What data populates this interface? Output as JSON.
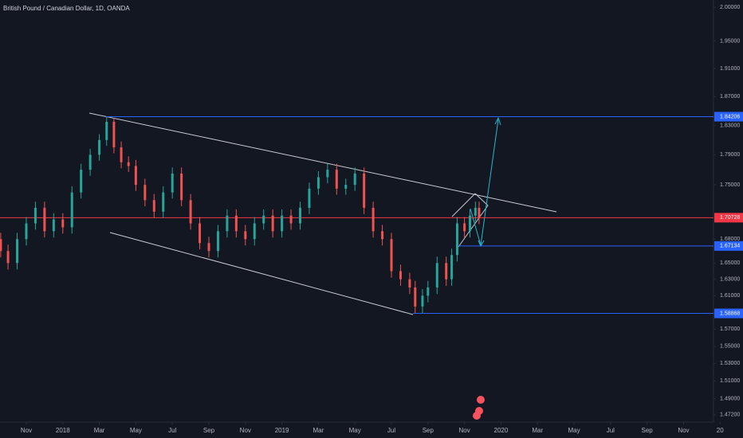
{
  "chart_data": {
    "type": "candlestick",
    "title": "British Pound / Canadian Dollar, 1D, OANDA",
    "log_scale": true,
    "grid": false,
    "up_color": "#26a69a",
    "down_color": "#ef5350",
    "x": [
      -1.4,
      -1.0,
      -0.5,
      0,
      0.5,
      1.0,
      1.5,
      2.0,
      2.5,
      3.0,
      3.5,
      4.0,
      4.4,
      4.8,
      5.2,
      5.6,
      6.0,
      6.5,
      7.0,
      7.5,
      8.0,
      8.5,
      9.0,
      9.5,
      10.0,
      10.5,
      11.0,
      11.5,
      12.0,
      12.5,
      13.0,
      13.5,
      14.0,
      14.5,
      15.0,
      15.5,
      16.0,
      16.5,
      17.0,
      17.5,
      18.0,
      18.5,
      19.0,
      19.5,
      20.0,
      20.5,
      21.0,
      21.3,
      21.7,
      22.0,
      22.5,
      23.0,
      23.3,
      23.6,
      24.0,
      24.3,
      24.6,
      24.8
    ],
    "open": [
      1.68,
      1.665,
      1.65,
      1.68,
      1.7,
      1.72,
      1.69,
      1.705,
      1.695,
      1.74,
      1.77,
      1.79,
      1.81,
      1.835,
      1.8,
      1.78,
      1.775,
      1.75,
      1.73,
      1.715,
      1.74,
      1.765,
      1.73,
      1.7,
      1.675,
      1.665,
      1.69,
      1.71,
      1.69,
      1.68,
      1.7,
      1.71,
      1.69,
      1.71,
      1.7,
      1.72,
      1.745,
      1.76,
      1.77,
      1.745,
      1.75,
      1.765,
      1.72,
      1.69,
      1.68,
      1.64,
      1.63,
      1.62,
      1.597,
      1.61,
      1.62,
      1.65,
      1.63,
      1.66,
      1.7,
      1.69,
      1.71,
      1.72
    ],
    "high": [
      1.688,
      1.673,
      1.688,
      1.708,
      1.728,
      1.728,
      1.713,
      1.713,
      1.748,
      1.778,
      1.798,
      1.818,
      1.842,
      1.84,
      1.808,
      1.788,
      1.783,
      1.758,
      1.738,
      1.748,
      1.773,
      1.773,
      1.738,
      1.708,
      1.683,
      1.698,
      1.718,
      1.718,
      1.698,
      1.708,
      1.718,
      1.718,
      1.718,
      1.718,
      1.728,
      1.753,
      1.768,
      1.778,
      1.778,
      1.758,
      1.773,
      1.773,
      1.728,
      1.698,
      1.688,
      1.648,
      1.638,
      1.628,
      1.618,
      1.628,
      1.658,
      1.658,
      1.668,
      1.708,
      1.708,
      1.718,
      1.728,
      1.728
    ],
    "low": [
      1.657,
      1.642,
      1.642,
      1.672,
      1.692,
      1.682,
      1.682,
      1.687,
      1.687,
      1.732,
      1.762,
      1.782,
      1.802,
      1.792,
      1.772,
      1.767,
      1.742,
      1.722,
      1.707,
      1.707,
      1.732,
      1.722,
      1.692,
      1.667,
      1.657,
      1.657,
      1.682,
      1.682,
      1.672,
      1.672,
      1.692,
      1.682,
      1.682,
      1.692,
      1.692,
      1.712,
      1.737,
      1.752,
      1.737,
      1.737,
      1.742,
      1.712,
      1.682,
      1.672,
      1.632,
      1.622,
      1.612,
      1.589,
      1.589,
      1.602,
      1.612,
      1.622,
      1.622,
      1.652,
      1.682,
      1.682,
      1.702,
      1.699
    ],
    "close": [
      1.665,
      1.65,
      1.68,
      1.7,
      1.72,
      1.69,
      1.705,
      1.695,
      1.74,
      1.77,
      1.79,
      1.81,
      1.835,
      1.8,
      1.78,
      1.775,
      1.75,
      1.73,
      1.715,
      1.74,
      1.765,
      1.73,
      1.7,
      1.675,
      1.665,
      1.69,
      1.71,
      1.69,
      1.68,
      1.7,
      1.71,
      1.69,
      1.71,
      1.7,
      1.72,
      1.745,
      1.76,
      1.77,
      1.745,
      1.75,
      1.765,
      1.72,
      1.69,
      1.68,
      1.64,
      1.63,
      1.62,
      1.597,
      1.61,
      1.62,
      1.65,
      1.63,
      1.66,
      1.7,
      1.69,
      1.71,
      1.72,
      1.707
    ],
    "xlim": [
      -1.44,
      37.64
    ],
    "xticks": [
      {
        "value": 0,
        "label": "Nov"
      },
      {
        "value": 2,
        "label": "2018"
      },
      {
        "value": 4,
        "label": "Mar"
      },
      {
        "value": 6,
        "label": "May"
      },
      {
        "value": 8,
        "label": "Jul"
      },
      {
        "value": 10,
        "label": "Sep"
      },
      {
        "value": 12,
        "label": "Nov"
      },
      {
        "value": 14,
        "label": "2019"
      },
      {
        "value": 16,
        "label": "Mar"
      },
      {
        "value": 18,
        "label": "May"
      },
      {
        "value": 20,
        "label": "Jul"
      },
      {
        "value": 22,
        "label": "Sep"
      },
      {
        "value": 24,
        "label": "Nov"
      },
      {
        "value": 26,
        "label": "2020"
      },
      {
        "value": 28,
        "label": "Mar"
      },
      {
        "value": 30,
        "label": "May"
      },
      {
        "value": 32,
        "label": "Jul"
      },
      {
        "value": 34,
        "label": "Sep"
      },
      {
        "value": 36,
        "label": "Nov"
      },
      {
        "value": 38,
        "label": "20"
      }
    ],
    "ylim": [
      1.464,
      2.011
    ],
    "yticks": [
      {
        "value": 2.0,
        "label": "2.00000"
      },
      {
        "value": 1.95,
        "label": "1.95000"
      },
      {
        "value": 1.91,
        "label": "1.91000"
      },
      {
        "value": 1.87,
        "label": "1.87000"
      },
      {
        "value": 1.83,
        "label": "1.83000"
      },
      {
        "value": 1.79,
        "label": "1.79000"
      },
      {
        "value": 1.75,
        "label": "1.75000"
      },
      {
        "value": 1.68,
        "label": "1.68000"
      },
      {
        "value": 1.65,
        "label": "1.65000"
      },
      {
        "value": 1.63,
        "label": "1.63000"
      },
      {
        "value": 1.61,
        "label": "1.61000"
      },
      {
        "value": 1.57,
        "label": "1.57000"
      },
      {
        "value": 1.55,
        "label": "1.55000"
      },
      {
        "value": 1.53,
        "label": "1.53000"
      },
      {
        "value": 1.51,
        "label": "1.51000"
      },
      {
        "value": 1.49,
        "label": "1.49000"
      },
      {
        "value": 1.472,
        "label": "1.47200"
      }
    ],
    "price_lines": [
      {
        "value": 1.84206,
        "color": "#2962ff"
      },
      {
        "value": 1.70728,
        "color": "#f23645"
      },
      {
        "value": 1.67134,
        "color": "#2962ff"
      },
      {
        "value": 1.58868,
        "color": "#2962ff"
      }
    ]
  }
}
